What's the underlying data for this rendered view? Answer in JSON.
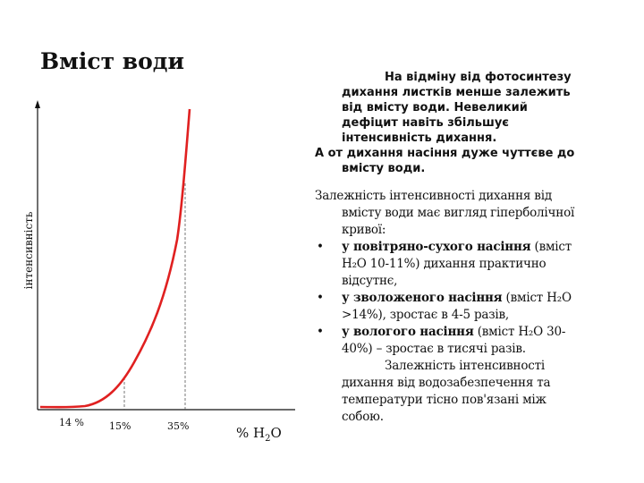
{
  "title": "Вміст води",
  "graph": {
    "ylabel": "інтенсивність",
    "ticks": [
      "14 %",
      "15%",
      "35%"
    ],
    "xlabel_prefix": "% H",
    "xlabel_sub": "2",
    "xlabel_suffix": "O",
    "curve_color": "#e02020",
    "axis_color": "#111111"
  },
  "intro": {
    "p1": "На відміну від фотосинтезу дихання листків менше залежить від вмісту води. Невеликий дефіцит навіть збільшує інтенсивність дихання.",
    "p2": "А от дихання насіння дуже чуттєве до вмісту води."
  },
  "body": {
    "lead": "Залежність інтенсивності дихання від вмісту води має вигляд гіперболічної кривої:",
    "bullet_glyph": "•",
    "items": [
      {
        "bold": "у повітряно-сухого насіння",
        "rest": " (вміст H₂O 10-11%) дихання практично відсутнє,"
      },
      {
        "bold": "у зволоженого насіння",
        "rest": " (вміст H₂O >14%), зростає в 4-5 разів,"
      },
      {
        "bold": "у вологого насіння",
        "rest": " (вміст H₂O 30-40%) – зростає в тисячі разів."
      }
    ],
    "final": "Залежність інтенсивності дихання від водозабезпечення та температури тісно пов'язані між собою."
  }
}
